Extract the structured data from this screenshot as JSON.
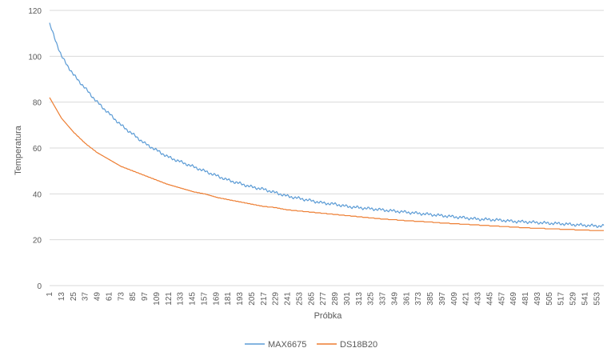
{
  "chart_data": {
    "type": "line",
    "title": "",
    "xlabel": "Próbka",
    "ylabel": "Temperatura",
    "ylim": [
      0,
      120
    ],
    "yticks": [
      0,
      20,
      40,
      60,
      80,
      100,
      120
    ],
    "xlim": [
      1,
      560
    ],
    "xticks": [
      1,
      13,
      25,
      37,
      49,
      61,
      73,
      85,
      97,
      109,
      121,
      133,
      145,
      157,
      169,
      181,
      193,
      205,
      217,
      229,
      241,
      253,
      265,
      277,
      289,
      301,
      313,
      325,
      337,
      349,
      361,
      373,
      385,
      397,
      409,
      421,
      433,
      445,
      457,
      469,
      481,
      493,
      505,
      517,
      529,
      541,
      553
    ],
    "grid": true,
    "legend": "bottom",
    "series": [
      {
        "name": "MAX6675",
        "color": "#5b9bd5",
        "x": [
          1,
          13,
          25,
          37,
          49,
          61,
          73,
          85,
          97,
          109,
          121,
          133,
          145,
          157,
          169,
          181,
          193,
          205,
          217,
          229,
          241,
          253,
          265,
          277,
          289,
          301,
          313,
          325,
          337,
          349,
          361,
          373,
          385,
          397,
          409,
          421,
          433,
          445,
          457,
          469,
          481,
          493,
          505,
          517,
          529,
          541,
          553,
          560
        ],
        "y": [
          114,
          100,
          92,
          86,
          80,
          75,
          70,
          66,
          62,
          59,
          56,
          54,
          52,
          50,
          48,
          46,
          44.5,
          43,
          42,
          40.5,
          39,
          38,
          37,
          36,
          35.5,
          34.5,
          34,
          33.5,
          33,
          32.5,
          32,
          31.5,
          31,
          30.5,
          30,
          29.5,
          29,
          28.8,
          28.5,
          28,
          27.8,
          27.5,
          27.2,
          27,
          26.6,
          26.3,
          26,
          26
        ]
      },
      {
        "name": "DS18B20",
        "color": "#ed7d31",
        "x": [
          1,
          13,
          25,
          37,
          49,
          61,
          73,
          85,
          97,
          109,
          121,
          133,
          145,
          157,
          169,
          181,
          193,
          205,
          217,
          229,
          241,
          253,
          265,
          277,
          289,
          301,
          313,
          325,
          337,
          349,
          361,
          373,
          385,
          397,
          409,
          421,
          433,
          445,
          457,
          469,
          481,
          493,
          505,
          517,
          529,
          541,
          553,
          560
        ],
        "y": [
          82,
          73,
          67,
          62,
          58,
          55,
          52,
          50,
          48,
          46,
          44,
          42.5,
          41,
          40,
          38.5,
          37.5,
          36.5,
          35.5,
          34.5,
          34,
          33,
          32.5,
          32,
          31.5,
          31,
          30.5,
          30,
          29.5,
          29,
          28.7,
          28.3,
          28,
          27.7,
          27.3,
          27,
          26.7,
          26.4,
          26.1,
          25.8,
          25.5,
          25.2,
          25,
          24.8,
          24.6,
          24.4,
          24.2,
          24,
          24
        ]
      }
    ]
  }
}
